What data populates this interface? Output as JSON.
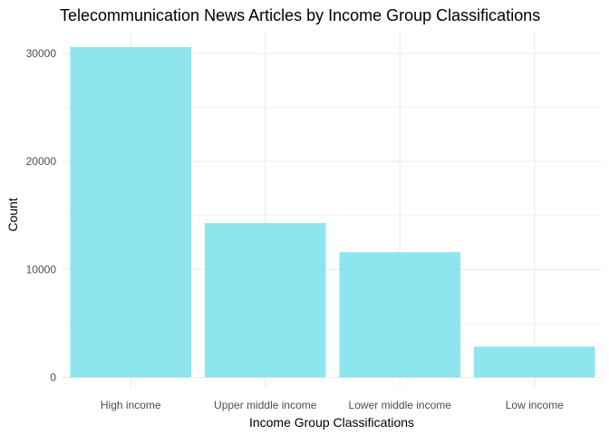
{
  "chart_data": {
    "type": "bar",
    "title": "Telecommunication News Articles by Income Group Classifications",
    "xlabel": "Income Group Classifications",
    "ylabel": "Count",
    "categories": [
      "High income",
      "Upper middle income",
      "Lower middle income",
      "Low income"
    ],
    "values": [
      30600,
      14300,
      11600,
      2850
    ],
    "ylim": [
      0,
      32000
    ],
    "yticks": [
      0,
      10000,
      20000,
      30000
    ],
    "ytick_labels": [
      "0",
      "10000",
      "20000",
      "30000"
    ],
    "grid": true,
    "bar_color": "#8ee5ee",
    "grid_color": "#ebebeb"
  }
}
